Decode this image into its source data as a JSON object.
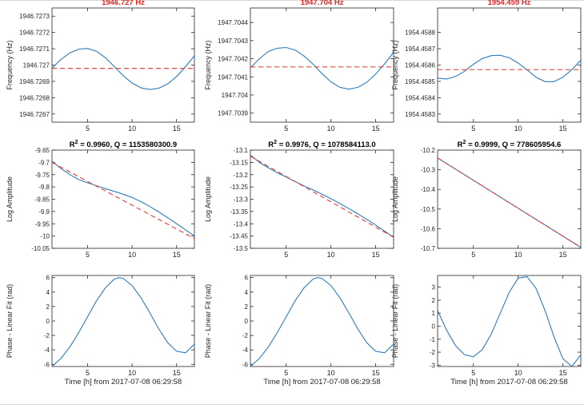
{
  "figure": {
    "xlabel": "Time [h] from 2017-07-08 06:29:58",
    "colors": {
      "data": "#2a7bbf",
      "fit": "#e8473f",
      "title_red": "#e8231d",
      "axes": "#262626"
    }
  },
  "chart_data": [
    {
      "type": "line",
      "row": 0,
      "col": 0,
      "title": "1946.727 Hz",
      "title_color": "#e8231d",
      "ylabel": "Frequency (Hz)",
      "xlim": [
        1,
        17
      ],
      "ylim": [
        1946.72665,
        1946.72735
      ],
      "xticks": [
        5,
        10,
        15
      ],
      "xtick_labels": [
        "5",
        "10",
        "15"
      ],
      "yticks": [
        1946.7267,
        1946.7268,
        1946.7269,
        1946.727,
        1946.7271,
        1946.7272,
        1946.7273
      ],
      "ytick_labels": [
        "1946.7267",
        "1946.7268",
        "1946.7269",
        "1946.727",
        "1946.7271",
        "1946.7272",
        "1946.7273"
      ],
      "series": [
        {
          "style": "solid",
          "color": "#2a7bbf",
          "x": [
            1,
            2,
            3,
            4,
            5,
            6,
            7,
            8,
            9,
            10,
            11,
            12,
            13,
            14,
            15,
            16,
            17
          ],
          "y": [
            1946.72698,
            1946.727035,
            1946.727075,
            1946.727098,
            1946.727102,
            1946.727085,
            1946.727045,
            1946.72699,
            1946.726935,
            1946.72689,
            1946.72686,
            1946.72685,
            1946.726858,
            1946.726885,
            1946.72693,
            1946.72699,
            1946.727058
          ]
        },
        {
          "style": "dashed",
          "color": "#e8473f",
          "x": [
            1,
            17
          ],
          "y": [
            1946.72698,
            1946.72698
          ]
        }
      ]
    },
    {
      "type": "line",
      "row": 0,
      "col": 1,
      "title": "1947.704 Hz",
      "title_color": "#e8231d",
      "ylabel": "Frequency (Hz)",
      "xlim": [
        1,
        17
      ],
      "ylim": [
        1947.70385,
        1947.70448
      ],
      "xticks": [
        5,
        10,
        15
      ],
      "xtick_labels": [
        "5",
        "10",
        "15"
      ],
      "yticks": [
        1947.7039,
        1947.704,
        1947.7041,
        1947.7042,
        1947.7043,
        1947.7044
      ],
      "ytick_labels": [
        "1947.7039",
        "1947.704",
        "1947.7041",
        "1947.7042",
        "1947.7043",
        "1947.7044"
      ],
      "series": [
        {
          "style": "solid",
          "color": "#2a7bbf",
          "x": [
            1,
            2,
            3,
            4,
            5,
            6,
            7,
            8,
            9,
            10,
            11,
            12,
            13,
            14,
            15,
            16,
            17
          ],
          "y": [
            1947.70415,
            1947.7042,
            1947.70424,
            1947.704258,
            1947.704262,
            1947.704248,
            1947.704215,
            1947.70417,
            1947.704118,
            1947.704072,
            1947.704042,
            1947.704032,
            1947.704042,
            1947.70407,
            1947.704115,
            1947.704172,
            1947.704235
          ]
        },
        {
          "style": "dashed",
          "color": "#e8473f",
          "x": [
            1,
            17
          ],
          "y": [
            1947.704155,
            1947.704155
          ]
        }
      ]
    },
    {
      "type": "line",
      "row": 0,
      "col": 2,
      "title": "1954.459 Hz",
      "title_color": "#e8231d",
      "ylabel": "Frequency (Hz)",
      "xlim": [
        1,
        17
      ],
      "ylim": [
        1954.45825,
        1954.45895
      ],
      "xticks": [
        5,
        10,
        15
      ],
      "xtick_labels": [
        "5",
        "10",
        "15"
      ],
      "yticks": [
        1954.4583,
        1954.4584,
        1954.4585,
        1954.4586,
        1954.4587,
        1954.4588
      ],
      "ytick_labels": [
        "1954.4583",
        "1954.4584",
        "1954.4585",
        "1954.4586",
        "1954.4587",
        "1954.4588"
      ],
      "series": [
        {
          "style": "solid",
          "color": "#2a7bbf",
          "x": [
            1,
            2,
            3,
            4,
            5,
            6,
            7,
            8,
            9,
            10,
            11,
            12,
            13,
            14,
            15,
            16,
            17
          ],
          "y": [
            1954.45852,
            1954.458515,
            1954.45853,
            1954.458562,
            1954.458605,
            1954.45864,
            1954.458658,
            1954.45866,
            1954.458645,
            1954.458612,
            1954.45857,
            1954.458525,
            1954.458498,
            1954.458498,
            1954.458525,
            1954.458572,
            1954.45863
          ]
        },
        {
          "style": "dashed",
          "color": "#e8473f",
          "x": [
            1,
            17
          ],
          "y": [
            1954.458572,
            1954.458572
          ]
        }
      ]
    },
    {
      "type": "line",
      "row": 1,
      "col": 0,
      "title_prefix": "R",
      "title_sup": "2",
      "title_suffix": " = 0.9960, Q = 1153580300.9",
      "title_color": "#000000",
      "ylabel": "Log Amplitude",
      "xlim": [
        1,
        17
      ],
      "ylim": [
        -10.05,
        -9.65
      ],
      "xticks": [
        5,
        10,
        15
      ],
      "xtick_labels": [
        "5",
        "10",
        "15"
      ],
      "yticks": [
        -9.65,
        -9.7,
        -9.75,
        -9.8,
        -9.85,
        -9.9,
        -9.95,
        -10,
        -10.05
      ],
      "ytick_labels": [
        "-9.65",
        "-9.7",
        "-9.75",
        "-9.8",
        "-9.85",
        "-9.9",
        "-9.95",
        "-10",
        "-10.05"
      ],
      "series": [
        {
          "style": "solid",
          "color": "#2a7bbf",
          "x": [
            1,
            2,
            3,
            4,
            5,
            6,
            7,
            8,
            9,
            10,
            11,
            12,
            13,
            14,
            15,
            16,
            17
          ],
          "y": [
            -9.695,
            -9.725,
            -9.75,
            -9.77,
            -9.783,
            -9.795,
            -9.807,
            -9.818,
            -9.83,
            -9.843,
            -9.86,
            -9.88,
            -9.902,
            -9.925,
            -9.95,
            -9.975,
            -10.0
          ]
        },
        {
          "style": "dashed",
          "color": "#e8473f",
          "x": [
            1,
            17
          ],
          "y": [
            -9.7,
            -10.01
          ]
        }
      ]
    },
    {
      "type": "line",
      "row": 1,
      "col": 1,
      "title_prefix": "R",
      "title_sup": "2",
      "title_suffix": " = 0.9976, Q = 1078584113.0",
      "title_color": "#000000",
      "ylabel": "Log Amplitude",
      "xlim": [
        1,
        17
      ],
      "ylim": [
        -13.5,
        -13.1
      ],
      "xticks": [
        5,
        10,
        15
      ],
      "xtick_labels": [
        "5",
        "10",
        "15"
      ],
      "yticks": [
        -13.1,
        -13.15,
        -13.2,
        -13.25,
        -13.3,
        -13.35,
        -13.4,
        -13.45,
        -13.5
      ],
      "ytick_labels": [
        "-13.1",
        "-13.15",
        "-13.2",
        "-13.25",
        "-13.3",
        "-13.35",
        "-13.4",
        "-13.45",
        "-13.5"
      ],
      "series": [
        {
          "style": "solid",
          "color": "#2a7bbf",
          "x": [
            1,
            2,
            3,
            4,
            5,
            6,
            7,
            8,
            9,
            10,
            11,
            12,
            13,
            14,
            15,
            16,
            17
          ],
          "y": [
            -13.12,
            -13.15,
            -13.172,
            -13.192,
            -13.21,
            -13.228,
            -13.246,
            -13.262,
            -13.28,
            -13.298,
            -13.318,
            -13.338,
            -13.36,
            -13.382,
            -13.405,
            -13.43,
            -13.455
          ]
        },
        {
          "style": "dashed",
          "color": "#e8473f",
          "x": [
            1,
            17
          ],
          "y": [
            -13.125,
            -13.455
          ]
        }
      ]
    },
    {
      "type": "line",
      "row": 1,
      "col": 2,
      "title_prefix": "R",
      "title_sup": "2",
      "title_suffix": " = 0.9999, Q = 778605954.6",
      "title_color": "#000000",
      "ylabel": "Log Amplitude",
      "xlim": [
        1,
        17
      ],
      "ylim": [
        -10.7,
        -10.2
      ],
      "xticks": [
        5,
        10,
        15
      ],
      "xtick_labels": [
        "5",
        "10",
        "15"
      ],
      "yticks": [
        -10.2,
        -10.3,
        -10.4,
        -10.5,
        -10.6,
        -10.7
      ],
      "ytick_labels": [
        "-10.2",
        "-10.3",
        "-10.4",
        "-10.5",
        "-10.6",
        "-10.7"
      ],
      "series": [
        {
          "style": "solid",
          "color": "#2a7bbf",
          "x": [
            1,
            17
          ],
          "y": [
            -10.24,
            -10.695
          ]
        },
        {
          "style": "dashed",
          "color": "#e8473f",
          "x": [
            1,
            17
          ],
          "y": [
            -10.24,
            -10.695
          ]
        }
      ]
    },
    {
      "type": "line",
      "row": 2,
      "col": 0,
      "ylabel": "Phase - Linear Fit (rad)",
      "xlim": [
        1,
        17
      ],
      "ylim": [
        -6.3,
        6.3
      ],
      "xticks": [
        5,
        10,
        15
      ],
      "xtick_labels": [
        "5",
        "10",
        "15"
      ],
      "yticks": [
        6,
        4,
        2,
        0,
        -2,
        -4,
        -6
      ],
      "ytick_labels": [
        "6",
        "4",
        "2",
        "0",
        "-2",
        "-4",
        "-6"
      ],
      "series": [
        {
          "style": "solid",
          "color": "#2a7bbf",
          "x": [
            1,
            2,
            3,
            4,
            5,
            6,
            7,
            8,
            8.5,
            9,
            10,
            11,
            12,
            13,
            14,
            15,
            16,
            17
          ],
          "y": [
            -6.3,
            -5.2,
            -3.6,
            -1.6,
            0.6,
            2.8,
            4.6,
            5.8,
            6.0,
            5.9,
            4.9,
            3.2,
            1.1,
            -1.1,
            -3.0,
            -4.2,
            -4.4,
            -3.2
          ]
        }
      ]
    },
    {
      "type": "line",
      "row": 2,
      "col": 1,
      "ylabel": "Phase - Linear Fit (rad)",
      "xlim": [
        1,
        17
      ],
      "ylim": [
        -6.3,
        6.3
      ],
      "xticks": [
        5,
        10,
        15
      ],
      "xtick_labels": [
        "5",
        "10",
        "15"
      ],
      "yticks": [
        6,
        4,
        2,
        0,
        -2,
        -4,
        -6
      ],
      "ytick_labels": [
        "6",
        "4",
        "2",
        "0",
        "-2",
        "-4",
        "-6"
      ],
      "series": [
        {
          "style": "solid",
          "color": "#2a7bbf",
          "x": [
            1,
            2,
            3,
            4,
            5,
            6,
            7,
            8,
            8.5,
            9,
            10,
            11,
            12,
            13,
            14,
            15,
            16,
            17
          ],
          "y": [
            -6.3,
            -5.2,
            -3.6,
            -1.6,
            0.6,
            2.8,
            4.6,
            5.8,
            6.0,
            5.9,
            4.9,
            3.2,
            1.1,
            -1.1,
            -3.0,
            -4.2,
            -4.4,
            -3.2
          ]
        }
      ]
    },
    {
      "type": "line",
      "row": 2,
      "col": 2,
      "ylabel": "Phase - Linear Fit (rad)",
      "xlim": [
        1,
        17
      ],
      "ylim": [
        -3.1,
        3.9
      ],
      "xticks": [
        5,
        10,
        15
      ],
      "xtick_labels": [
        "5",
        "10",
        "15"
      ],
      "yticks": [
        3,
        2,
        1,
        0,
        -1,
        -2,
        -3
      ],
      "ytick_labels": [
        "3",
        "2",
        "1",
        "0",
        "-1",
        "-2",
        "-3"
      ],
      "series": [
        {
          "style": "solid",
          "color": "#2a7bbf",
          "x": [
            1,
            2,
            3,
            4,
            5,
            6,
            7,
            8,
            9,
            10,
            11,
            12,
            13,
            14,
            15,
            16,
            17
          ],
          "y": [
            1.2,
            -0.3,
            -1.5,
            -2.2,
            -2.35,
            -1.8,
            -0.6,
            1.0,
            2.6,
            3.7,
            3.8,
            2.9,
            1.2,
            -0.8,
            -2.5,
            -3.1,
            -2.2
          ]
        }
      ]
    }
  ]
}
